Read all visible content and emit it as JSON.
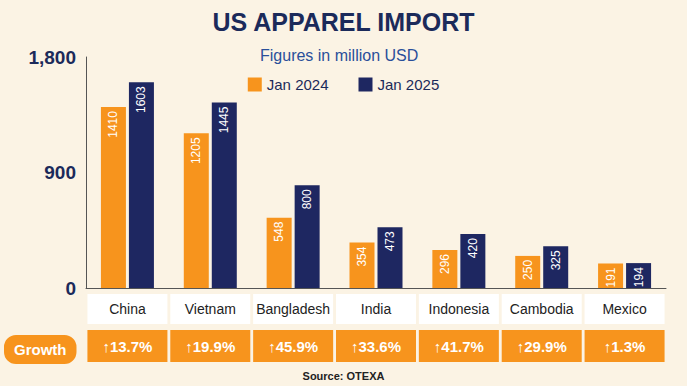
{
  "chart_data": {
    "type": "bar",
    "title": "US APPAREL IMPORT",
    "subtitle": "Figures in million USD",
    "categories": [
      "China",
      "Vietnam",
      "Bangladesh",
      "India",
      "Indonesia",
      "Cambodia",
      "Mexico"
    ],
    "series": [
      {
        "name": "Jan 2024",
        "color": "#F7941D",
        "values": [
          1410,
          1205,
          548,
          354,
          296,
          250,
          191
        ]
      },
      {
        "name": "Jan 2025",
        "color": "#1E2761",
        "values": [
          1603,
          1445,
          800,
          473,
          420,
          325,
          194
        ]
      }
    ],
    "ylim": [
      0,
      1800
    ],
    "yticks": [
      0,
      900,
      {
        "value": 1800,
        "label": "1,800"
      }
    ],
    "grid": false,
    "legend": "top",
    "data_labels": true,
    "growth": {
      "label": "Growth",
      "values": [
        13.7,
        19.9,
        45.9,
        33.6,
        41.7,
        29.9,
        1.3
      ],
      "value_labels": [
        "↑13.7%",
        "↑19.9%",
        "↑45.9%",
        "↑33.6%",
        "↑41.7%",
        "↑29.9%",
        "↑1.3%"
      ]
    },
    "source": "Source: OTEXA"
  }
}
